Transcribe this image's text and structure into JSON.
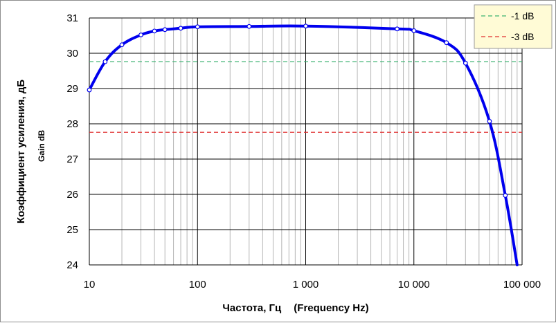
{
  "chart_data": {
    "type": "line",
    "xlabel_ru": "Частота, Гц",
    "xlabel_en": "(Frequency Hz)",
    "ylabel_ru": "Коэффициент усиления, дБ",
    "ylabel_en": "Gain dB",
    "x_scale": "log",
    "xlim": [
      10,
      100000
    ],
    "ylim": [
      24,
      31
    ],
    "grid": true,
    "x_ticks": [
      {
        "value": 10,
        "label": "10"
      },
      {
        "value": 100,
        "label": "100"
      },
      {
        "value": 1000,
        "label": "1 000"
      },
      {
        "value": 10000,
        "label": "10 000"
      },
      {
        "value": 100000,
        "label": "100 000"
      }
    ],
    "y_ticks": [
      {
        "value": 24,
        "label": "24"
      },
      {
        "value": 25,
        "label": "25"
      },
      {
        "value": 26,
        "label": "26"
      },
      {
        "value": 27,
        "label": "27"
      },
      {
        "value": 28,
        "label": "28"
      },
      {
        "value": 29,
        "label": "29"
      },
      {
        "value": 30,
        "label": "30"
      },
      {
        "value": 31,
        "label": "31"
      }
    ],
    "series": [
      {
        "color": "#0000ee",
        "x": [
          10,
          14,
          20,
          30,
          40,
          50,
          70,
          100,
          300,
          1000,
          7000,
          10000,
          20000,
          30000,
          50000,
          70000,
          90000
        ],
        "y": [
          28.96,
          29.76,
          30.24,
          30.52,
          30.63,
          30.67,
          30.71,
          30.75,
          30.76,
          30.77,
          30.69,
          30.64,
          30.3,
          29.72,
          28.07,
          25.97,
          24.0
        ]
      }
    ],
    "reference_lines": [
      {
        "name": "-1 dB",
        "y": 29.76,
        "color": "#3cb371"
      },
      {
        "name": "-3 dB",
        "y": 27.76,
        "color": "#e03030"
      }
    ],
    "legend_position": "top-right"
  }
}
